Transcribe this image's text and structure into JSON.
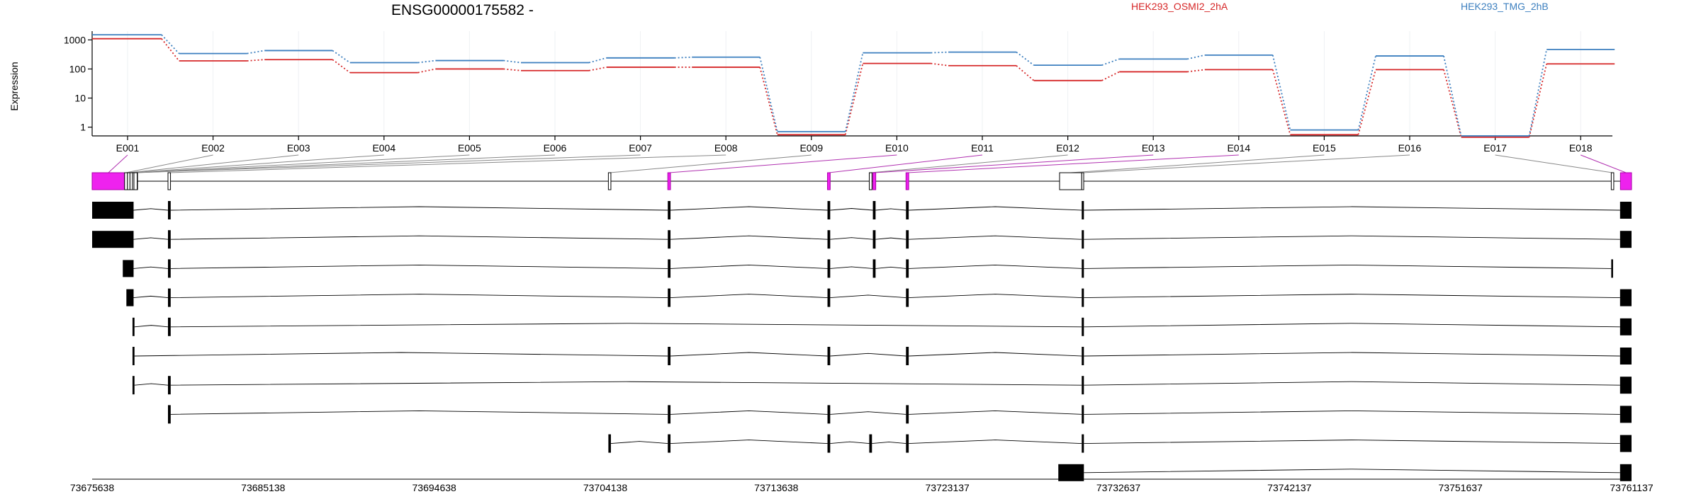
{
  "chart_data": {
    "type": "line",
    "title": "ENSG00000175582 -",
    "ylabel": "Expression",
    "y_scale": "log",
    "ylim": [
      0.5,
      2000
    ],
    "y_ticks": [
      1,
      10,
      100,
      1000
    ],
    "y_tick_labels": [
      "1",
      "10",
      "100",
      "1000"
    ],
    "categories": [
      "E001",
      "E002",
      "E003",
      "E004",
      "E005",
      "E006",
      "E007",
      "E008",
      "E009",
      "E010",
      "E011",
      "E012",
      "E013",
      "E014",
      "E015",
      "E016",
      "E017",
      "E018"
    ],
    "legend_position": "top-right",
    "series": [
      {
        "name": "HEK293_OSMI2_2hA",
        "color": "#d62728",
        "values": [
          1100,
          190,
          210,
          75,
          100,
          88,
          115,
          115,
          0.55,
          155,
          130,
          40,
          80,
          95,
          0.55,
          95,
          0.45,
          150
        ]
      },
      {
        "name": "HEK293_TMG_2hB",
        "color": "#3c7fbf",
        "values": [
          1500,
          340,
          430,
          165,
          195,
          165,
          240,
          255,
          0.7,
          360,
          380,
          135,
          220,
          300,
          0.8,
          280,
          0.5,
          470
        ]
      }
    ],
    "genomic_axis": {
      "range": [
        73675638,
        73761137
      ],
      "tick_labels": [
        "73675638",
        "73685138",
        "73694638",
        "73704138",
        "73713638",
        "73723137",
        "73732637",
        "73742137",
        "73751637",
        "73761137"
      ]
    },
    "gene_model": {
      "exons_bp": [
        [
          73675638,
          73677440
        ],
        [
          73677440,
          73677600
        ],
        [
          73677600,
          73677740
        ],
        [
          73677740,
          73677880
        ],
        [
          73677880,
          73678020
        ],
        [
          73678020,
          73678160
        ],
        [
          73677960,
          73678140
        ],
        [
          73679850,
          73679990
        ],
        [
          73704310,
          73704450
        ],
        [
          73707610,
          73707760
        ],
        [
          73716480,
          73716630
        ],
        [
          73718800,
          73718950
        ],
        [
          73719000,
          73719160
        ],
        [
          73720840,
          73720990
        ],
        [
          73729370,
          73730600
        ],
        [
          73730600,
          73730710
        ],
        [
          73760010,
          73760150
        ],
        [
          73760520,
          73761137
        ]
      ],
      "highlighted_exons": [
        1,
        10,
        11,
        13,
        14,
        18
      ]
    },
    "transcripts": [
      {
        "exons": [
          [
            73675638,
            73677940
          ],
          [
            73679850,
            73680000
          ],
          [
            73707610,
            73707760
          ],
          [
            73716480,
            73716630
          ],
          [
            73719000,
            73719150
          ],
          [
            73720840,
            73720990
          ],
          [
            73730600,
            73730720
          ],
          [
            73760500,
            73761137
          ]
        ]
      },
      {
        "exons": [
          [
            73675638,
            73677940
          ],
          [
            73679850,
            73680000
          ],
          [
            73707610,
            73707760
          ],
          [
            73716480,
            73716630
          ],
          [
            73719000,
            73719150
          ],
          [
            73720840,
            73720990
          ],
          [
            73730600,
            73730720
          ],
          [
            73760500,
            73761137
          ]
        ]
      },
      {
        "exons": [
          [
            73677340,
            73677940
          ],
          [
            73679850,
            73680000
          ],
          [
            73707610,
            73707760
          ],
          [
            73716480,
            73716630
          ],
          [
            73719000,
            73719150
          ],
          [
            73720840,
            73720990
          ],
          [
            73730600,
            73730720
          ],
          [
            73760010,
            73760110
          ]
        ]
      },
      {
        "exons": [
          [
            73677540,
            73677940
          ],
          [
            73679850,
            73680000
          ],
          [
            73707610,
            73707760
          ],
          [
            73716480,
            73716630
          ],
          [
            73720840,
            73720990
          ],
          [
            73730600,
            73730720
          ],
          [
            73760500,
            73761137
          ]
        ]
      },
      {
        "exons": [
          [
            73677880,
            73677990
          ],
          [
            73679850,
            73680000
          ],
          [
            73730600,
            73730720
          ],
          [
            73760500,
            73761137
          ]
        ]
      },
      {
        "exons": [
          [
            73677880,
            73677990
          ],
          [
            73707610,
            73707760
          ],
          [
            73716480,
            73716630
          ],
          [
            73720840,
            73720990
          ],
          [
            73730600,
            73730720
          ],
          [
            73760500,
            73761137
          ]
        ]
      },
      {
        "exons": [
          [
            73677880,
            73677990
          ],
          [
            73679850,
            73680000
          ],
          [
            73730600,
            73730720
          ],
          [
            73760500,
            73761137
          ]
        ]
      },
      {
        "exons": [
          [
            73679850,
            73680000
          ],
          [
            73707610,
            73707760
          ],
          [
            73716480,
            73716630
          ],
          [
            73720840,
            73720990
          ],
          [
            73730600,
            73730720
          ],
          [
            73760500,
            73761137
          ]
        ]
      },
      {
        "exons": [
          [
            73704310,
            73704450
          ],
          [
            73707610,
            73707760
          ],
          [
            73716480,
            73716630
          ],
          [
            73718800,
            73718950
          ],
          [
            73720840,
            73720990
          ],
          [
            73730600,
            73730720
          ],
          [
            73760500,
            73761137
          ]
        ]
      },
      {
        "exons": [
          [
            73729300,
            73730720
          ],
          [
            73760500,
            73761137
          ]
        ]
      }
    ]
  }
}
